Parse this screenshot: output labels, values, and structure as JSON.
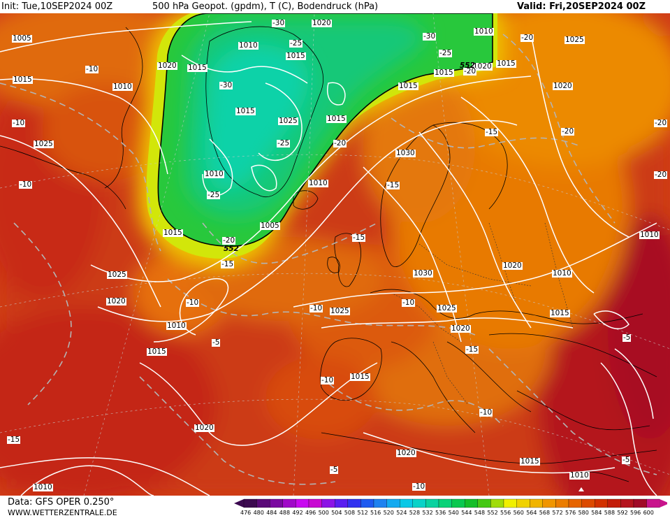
{
  "header": {
    "init": "Init: Tue,10SEP2024 00Z",
    "title": "500 hPa Geopot. (gpdm), T (C), Bodendruck (hPa)",
    "valid": "Valid: Fri,20SEP2024 00Z"
  },
  "footer": {
    "data_source": "Data: GFS OPER 0.250°",
    "website": "WWW.WETTERZENTRALE.DE"
  },
  "legend": {
    "values": [
      "476",
      "480",
      "484",
      "488",
      "492",
      "496",
      "500",
      "504",
      "508",
      "512",
      "516",
      "520",
      "524",
      "528",
      "532",
      "536",
      "540",
      "544",
      "548",
      "552",
      "556",
      "560",
      "564",
      "568",
      "572",
      "576",
      "580",
      "584",
      "588",
      "592",
      "596",
      "600"
    ],
    "colors": [
      "#3c0a50",
      "#5a0a78",
      "#7a0aa0",
      "#a00ac8",
      "#c80af0",
      "#c80ad2",
      "#8c14e6",
      "#5a1ef0",
      "#3232f0",
      "#1e5af0",
      "#1e82f0",
      "#14aaf0",
      "#0ac8e6",
      "#0ad2c8",
      "#0ad2a0",
      "#0ad278",
      "#0ac850",
      "#14be28",
      "#46c814",
      "#a0dc0a",
      "#f0f000",
      "#f0d200",
      "#f0b400",
      "#f09600",
      "#eb7d00",
      "#e66400",
      "#dc4b00",
      "#d23200",
      "#c31e0a",
      "#b4141e",
      "#a00a28",
      "#c8148c"
    ]
  },
  "map_labels": {
    "isobars": [
      {
        "t": "1005"
      },
      {
        "t": "1015"
      },
      {
        "t": "1025"
      },
      {
        "t": "1010"
      },
      {
        "t": "1015"
      },
      {
        "t": "1020"
      },
      {
        "t": "1010"
      },
      {
        "t": "1015"
      },
      {
        "t": "1020"
      },
      {
        "t": "1015"
      },
      {
        "t": "1010"
      },
      {
        "t": "1025"
      },
      {
        "t": "1015"
      },
      {
        "t": "1010"
      },
      {
        "t": "1005"
      },
      {
        "t": "1015"
      },
      {
        "t": "1025"
      },
      {
        "t": "1020"
      },
      {
        "t": "1010"
      },
      {
        "t": "1015"
      },
      {
        "t": "1025"
      },
      {
        "t": "1030"
      },
      {
        "t": "1030"
      },
      {
        "t": "1020"
      },
      {
        "t": "1010"
      },
      {
        "t": "1025"
      },
      {
        "t": "1020"
      },
      {
        "t": "1015"
      },
      {
        "t": "1010"
      },
      {
        "t": "1020"
      },
      {
        "t": "1025"
      },
      {
        "t": "1015"
      },
      {
        "t": "1020"
      },
      {
        "t": "1015"
      },
      {
        "t": "1015"
      },
      {
        "t": "1010"
      },
      {
        "t": "1015"
      },
      {
        "t": "1010"
      },
      {
        "t": "1020"
      },
      {
        "t": "1020"
      },
      {
        "t": "1015"
      },
      {
        "t": "1010"
      }
    ],
    "temps": [
      {
        "t": "-30"
      },
      {
        "t": "-30"
      },
      {
        "t": "-25"
      },
      {
        "t": "-25"
      },
      {
        "t": "-30"
      },
      {
        "t": "-25"
      },
      {
        "t": "-25"
      },
      {
        "t": "-20"
      },
      {
        "t": "-20"
      },
      {
        "t": "-20"
      },
      {
        "t": "-15"
      },
      {
        "t": "-15"
      },
      {
        "t": "-15"
      },
      {
        "t": "-20"
      },
      {
        "t": "-10"
      },
      {
        "t": "-10"
      },
      {
        "t": "-10"
      },
      {
        "t": "-10"
      },
      {
        "t": "-15"
      },
      {
        "t": "-10"
      },
      {
        "t": "-10"
      },
      {
        "t": "-5"
      },
      {
        "t": "-10"
      },
      {
        "t": "-15"
      },
      {
        "t": "-10"
      },
      {
        "t": "-5"
      },
      {
        "t": "-5"
      },
      {
        "t": "-10"
      },
      {
        "t": "-5"
      },
      {
        "t": "-20"
      },
      {
        "t": "-20"
      },
      {
        "t": "-20"
      },
      {
        "t": "-15"
      }
    ],
    "geopot": [
      {
        "t": "552"
      },
      {
        "t": "552"
      }
    ]
  }
}
